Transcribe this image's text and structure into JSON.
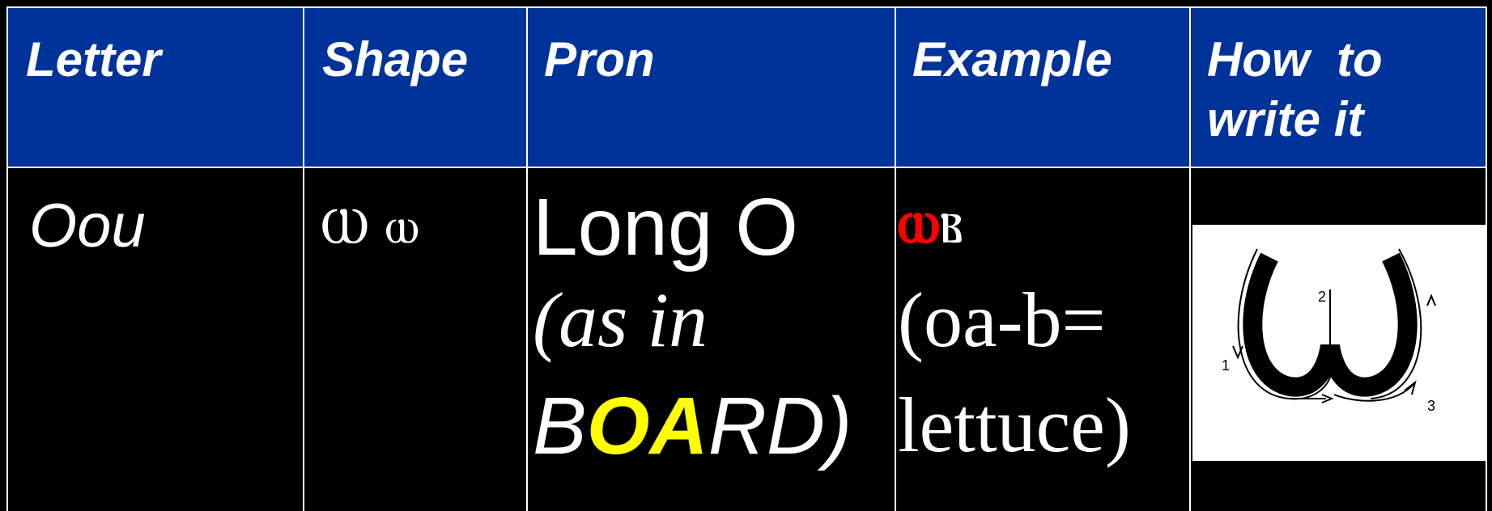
{
  "table": {
    "header": [
      "Letter",
      "Shape",
      "Pron",
      "Example",
      [
        "How  to",
        "write it"
      ]
    ],
    "row": {
      "letter": "Oou",
      "shape": "Ⲱ ⲱ",
      "pron": {
        "main": "Long O",
        "note": "(as in",
        "word": [
          "B",
          "OA",
          "RD)"
        ]
      },
      "example": {
        "coptic": [
          "ⲱ",
          "ⲃ"
        ],
        "gloss": [
          "(oa-b=",
          "lettuce)"
        ]
      },
      "diagram": {
        "strokes": [
          "1",
          "2",
          "3"
        ]
      }
    }
  }
}
